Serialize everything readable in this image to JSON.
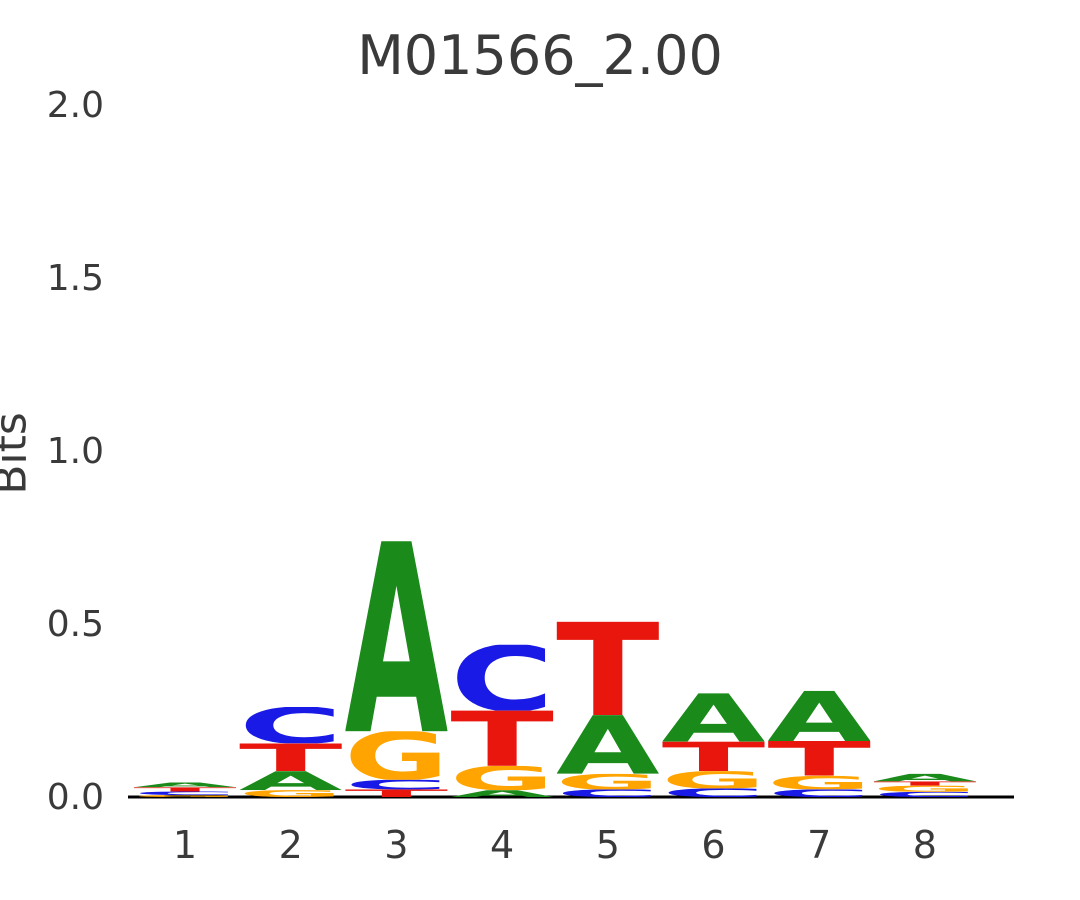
{
  "title": "M01566_2.00",
  "colors": {
    "A": "#1a8a1a",
    "C": "#1a1ae6",
    "G": "#ffa400",
    "T": "#e8160c"
  },
  "axes": {
    "ylabel": "Bits",
    "yticks": [
      "0.0",
      "0.5",
      "1.0",
      "1.5",
      "2.0"
    ],
    "ytick_values": [
      0.0,
      0.5,
      1.0,
      1.5,
      2.0
    ],
    "xticks": [
      "1",
      "2",
      "3",
      "4",
      "5",
      "6",
      "7",
      "8"
    ]
  },
  "chart_data": {
    "type": "sequence_logo",
    "title": "M01566_2.00",
    "xlabel": "",
    "ylabel": "Bits",
    "ylim": [
      0,
      2
    ],
    "positions": [
      1,
      2,
      3,
      4,
      5,
      6,
      7,
      8
    ],
    "stacks": [
      [
        {
          "base": "G",
          "bits": 0.006
        },
        {
          "base": "C",
          "bits": 0.01
        },
        {
          "base": "T",
          "bits": 0.012
        },
        {
          "base": "A",
          "bits": 0.014
        }
      ],
      [
        {
          "base": "G",
          "bits": 0.02
        },
        {
          "base": "A",
          "bits": 0.055
        },
        {
          "base": "T",
          "bits": 0.08
        },
        {
          "base": "C",
          "bits": 0.105
        }
      ],
      [
        {
          "base": "T",
          "bits": 0.022
        },
        {
          "base": "C",
          "bits": 0.028
        },
        {
          "base": "G",
          "bits": 0.14
        },
        {
          "base": "A",
          "bits": 0.55
        }
      ],
      [
        {
          "base": "A",
          "bits": 0.02
        },
        {
          "base": "G",
          "bits": 0.07
        },
        {
          "base": "T",
          "bits": 0.16
        },
        {
          "base": "C",
          "bits": 0.19
        }
      ],
      [
        {
          "base": "C",
          "bits": 0.022
        },
        {
          "base": "G",
          "bits": 0.045
        },
        {
          "base": "A",
          "bits": 0.17
        },
        {
          "base": "T",
          "bits": 0.27
        }
      ],
      [
        {
          "base": "C",
          "bits": 0.025
        },
        {
          "base": "G",
          "bits": 0.05
        },
        {
          "base": "T",
          "bits": 0.085
        },
        {
          "base": "A",
          "bits": 0.14
        }
      ],
      [
        {
          "base": "C",
          "bits": 0.022
        },
        {
          "base": "G",
          "bits": 0.04
        },
        {
          "base": "T",
          "bits": 0.1
        },
        {
          "base": "A",
          "bits": 0.145
        }
      ],
      [
        {
          "base": "C",
          "bits": 0.015
        },
        {
          "base": "G",
          "bits": 0.018
        },
        {
          "base": "T",
          "bits": 0.012
        },
        {
          "base": "A",
          "bits": 0.022
        }
      ]
    ]
  }
}
